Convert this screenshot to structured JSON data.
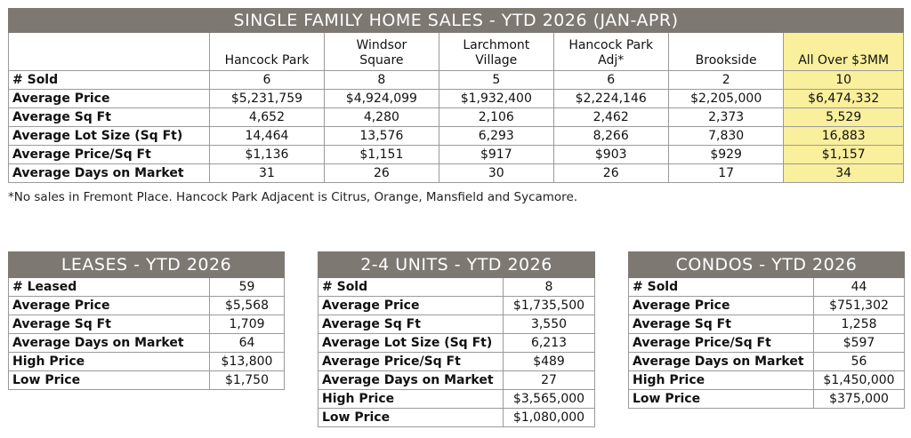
{
  "main": {
    "title": "SINGLE FAMILY HOME SALES - YTD 2026 (JAN-APR)",
    "columns": [
      {
        "line1": "",
        "line2": "Hancock Park"
      },
      {
        "line1": "Windsor",
        "line2": "Square"
      },
      {
        "line1": "Larchmont",
        "line2": "Village"
      },
      {
        "line1": "Hancock Park",
        "line2": "Adj*"
      },
      {
        "line1": "",
        "line2": "Brookside"
      },
      {
        "line1": "",
        "line2": "All Over $3MM"
      }
    ],
    "rows": [
      {
        "label": "# Sold",
        "values": [
          "6",
          "8",
          "5",
          "6",
          "2",
          "10"
        ]
      },
      {
        "label": "Average Price",
        "values": [
          "$5,231,759",
          "$4,924,099",
          "$1,932,400",
          "$2,224,146",
          "$2,205,000",
          "$6,474,332"
        ]
      },
      {
        "label": "Average Sq Ft",
        "values": [
          "4,652",
          "4,280",
          "2,106",
          "2,462",
          "2,373",
          "5,529"
        ]
      },
      {
        "label": "Average Lot Size (Sq Ft)",
        "values": [
          "14,464",
          "13,576",
          "6,293",
          "8,266",
          "7,830",
          "16,883"
        ]
      },
      {
        "label": "Average Price/Sq Ft",
        "values": [
          "$1,136",
          "$1,151",
          "$917",
          "$903",
          "$929",
          "$1,157"
        ]
      },
      {
        "label": "Average Days on Market",
        "values": [
          "31",
          "26",
          "30",
          "26",
          "17",
          "34"
        ]
      }
    ],
    "footnote": "*No sales in Fremont Place. Hancock Park Adjacent is Citrus, Orange, Mansfield and Sycamore."
  },
  "leases": {
    "title": "LEASES - YTD 2026",
    "rows": [
      {
        "label": "# Leased",
        "value": "59"
      },
      {
        "label": "Average Price",
        "value": "$5,568"
      },
      {
        "label": "Average Sq Ft",
        "value": "1,709"
      },
      {
        "label": "Average Days on Market",
        "value": "64"
      },
      {
        "label": "High Price",
        "value": "$13,800"
      },
      {
        "label": "Low Price",
        "value": "$1,750"
      }
    ]
  },
  "units": {
    "title": "2-4 UNITS - YTD 2026",
    "rows": [
      {
        "label": "# Sold",
        "value": "8"
      },
      {
        "label": "Average Price",
        "value": "$1,735,500"
      },
      {
        "label": "Average Sq Ft",
        "value": "3,550"
      },
      {
        "label": "Average Lot Size (Sq Ft)",
        "value": "6,213"
      },
      {
        "label": "Average Price/Sq Ft",
        "value": "$489"
      },
      {
        "label": "Average Days on Market",
        "value": "27"
      },
      {
        "label": "High Price",
        "value": "$3,565,000"
      },
      {
        "label": "Low Price",
        "value": "$1,080,000"
      }
    ]
  },
  "condos": {
    "title": "CONDOS - YTD 2026",
    "rows": [
      {
        "label": "# Sold",
        "value": "44"
      },
      {
        "label": "Average Price",
        "value": "$751,302"
      },
      {
        "label": "Average Sq Ft",
        "value": "1,258"
      },
      {
        "label": "Average Price/Sq Ft",
        "value": "$597"
      },
      {
        "label": "Average Days on Market",
        "value": "56"
      },
      {
        "label": "High Price",
        "value": "$1,450,000"
      },
      {
        "label": "Low Price",
        "value": "$375,000"
      }
    ]
  },
  "colors": {
    "banner": "#7e7873",
    "highlight": "#f9ef9c",
    "border": "#9a9a9a"
  }
}
